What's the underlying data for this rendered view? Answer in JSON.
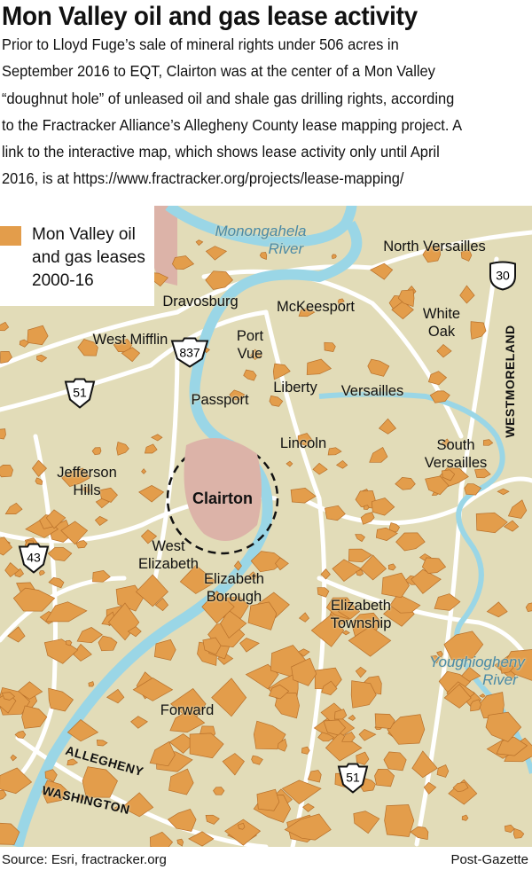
{
  "header": {
    "title": "Mon Valley oil and gas lease activity",
    "description_lines": [
      "Prior to Lloyd Fuge’s sale of mineral rights under 506 acres in",
      "September 2016 to EQT, Clairton was at the center of a Mon Valley",
      "“doughnut hole” of unleased oil and shale gas drilling rights, according",
      "to the Fractracker Alliance’s Allegheny County lease mapping project. A",
      "link to the interactive map, which shows lease activity only until April",
      "2016, is at https://www.fractracker.org/projects/lease-mapping/"
    ]
  },
  "legend": {
    "lines": [
      "Mon Valley oil",
      "and gas leases",
      "2000-16"
    ],
    "color": "#e39d4b"
  },
  "map": {
    "colors": {
      "land": "#e2dcb8",
      "river": "#9ad6e6",
      "lease": "#e39d4b",
      "lease_outline": "#b8702a",
      "clairton": "#dcb3a8",
      "road": "#ffffff"
    },
    "rivers": [
      "Monongahela River",
      "Youghiogheny River"
    ],
    "places": {
      "north_versailles": "North Versailles",
      "dravosburg": "Dravosburg",
      "mckeesport": "McKeesport",
      "white_oak": [
        "White",
        "Oak"
      ],
      "west_mifflin": "West Mifflin",
      "port_vue": [
        "Port",
        "Vue"
      ],
      "liberty": "Liberty",
      "versailles": "Versailles",
      "passport": "Passport",
      "lincoln": "Lincoln",
      "south_versailles": [
        "South",
        "Versailles"
      ],
      "jefferson_hills": [
        "Jefferson",
        "Hills"
      ],
      "clairton": "Clairton",
      "west_elizabeth": [
        "West",
        "Elizabeth"
      ],
      "elizabeth_borough": [
        "Elizabeth",
        "Borough"
      ],
      "elizabeth_township": [
        "Elizabeth",
        "Township"
      ],
      "forward": "Forward"
    },
    "river_labels": {
      "monongahela": [
        "Monongahela",
        "River"
      ],
      "youghiogheny": [
        "Youghiogheny",
        "River"
      ]
    },
    "counties": {
      "westmoreland": "WESTMORELAND",
      "allegheny": "ALLEGHENY",
      "washington": "WASHINGTON"
    },
    "routes": {
      "us30": "30",
      "pa837": "837",
      "pa51_north": "51",
      "pa43": "43",
      "pa51_south": "51"
    }
  },
  "footer": {
    "source": "Source: Esri, fractracker.org",
    "credit": "Post-Gazette"
  }
}
